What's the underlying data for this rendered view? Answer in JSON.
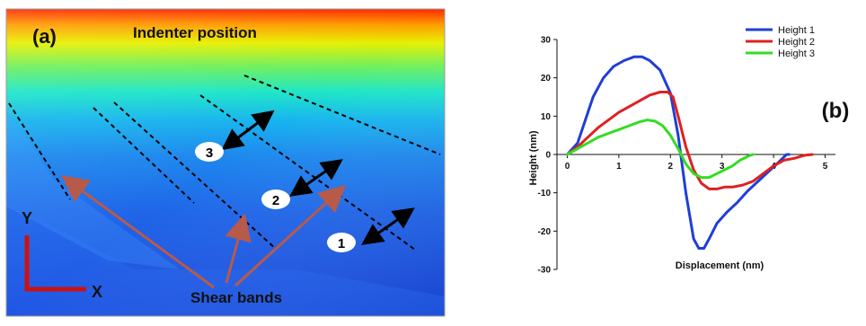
{
  "panel_a": {
    "label": "(a)",
    "title": "Indenter position",
    "markers": [
      "1",
      "2",
      "3"
    ],
    "shear_label": "Shear bands",
    "axis_y": "Y",
    "axis_x": "X",
    "colors": {
      "arrow_red": "#b85a4a",
      "axis_red": "#cc1111",
      "blue_dark": "#1f4bd8"
    }
  },
  "chart_data": {
    "type": "line",
    "panel_label": "(b)",
    "xlabel": "Displacement (nm)",
    "ylabel": "Height (nm)",
    "xlim": [
      -0.2,
      5.2
    ],
    "ylim": [
      -30,
      30
    ],
    "xticks": [
      "0",
      "1",
      "2",
      "3",
      "4",
      "5"
    ],
    "yticks": [
      "30",
      "20",
      "10",
      "0",
      "-10",
      "-20",
      "-30"
    ],
    "legend_position": "top-right",
    "grid": false,
    "series": [
      {
        "name": "Height 1",
        "color": "#1f3fd6",
        "x": [
          0,
          0.2,
          0.35,
          0.5,
          0.7,
          0.9,
          1.1,
          1.3,
          1.45,
          1.6,
          1.8,
          2.0,
          2.15,
          2.3,
          2.45,
          2.55,
          2.65,
          2.75,
          2.9,
          3.1,
          3.3,
          3.5,
          3.7,
          3.9,
          4.1,
          4.25,
          4.3
        ],
        "y": [
          0,
          3,
          9,
          15,
          20,
          23,
          24.5,
          25.5,
          25.5,
          24.5,
          22,
          16,
          5,
          -10,
          -22,
          -24.5,
          -24.5,
          -22,
          -18,
          -15,
          -12.5,
          -9.5,
          -7,
          -4.5,
          -2,
          0,
          0
        ]
      },
      {
        "name": "Height 2",
        "color": "#e02020",
        "x": [
          0,
          0.2,
          0.4,
          0.6,
          0.8,
          1.0,
          1.2,
          1.4,
          1.6,
          1.8,
          1.95,
          2.05,
          2.15,
          2.3,
          2.45,
          2.6,
          2.75,
          2.9,
          3.05,
          3.2,
          3.4,
          3.6,
          3.8,
          4.0,
          4.2,
          4.4,
          4.6,
          4.75
        ],
        "y": [
          0,
          2,
          4.5,
          7,
          9,
          11,
          12.5,
          14,
          15.5,
          16.3,
          16.3,
          15,
          10,
          2,
          -4,
          -7.5,
          -9,
          -9,
          -8.5,
          -8.5,
          -8,
          -7,
          -5,
          -3,
          -1.5,
          -1,
          -0.2,
          0
        ]
      },
      {
        "name": "Height 3",
        "color": "#33dd22",
        "x": [
          0,
          0.2,
          0.4,
          0.6,
          0.8,
          1.0,
          1.2,
          1.4,
          1.55,
          1.7,
          1.85,
          2.0,
          2.15,
          2.3,
          2.45,
          2.6,
          2.75,
          2.9,
          3.05,
          3.2,
          3.35,
          3.5,
          3.6
        ],
        "y": [
          0,
          1.5,
          3,
          4.5,
          5.5,
          6.5,
          7.5,
          8.5,
          9,
          8.7,
          7.5,
          5,
          1.5,
          -2.5,
          -5,
          -6,
          -6,
          -5,
          -4,
          -3,
          -1.5,
          -0.5,
          0
        ]
      }
    ]
  }
}
